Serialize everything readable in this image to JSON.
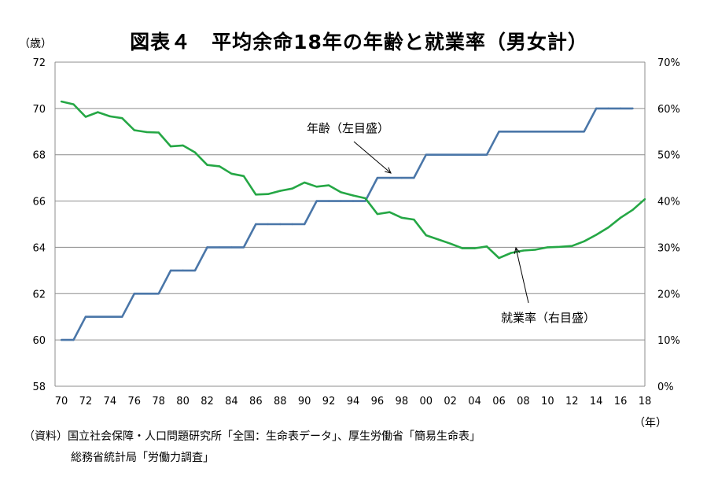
{
  "chart_data": {
    "type": "line",
    "title": "図表４　平均余命18年の年齢と就業率（男女計）",
    "left_axis_unit": "（歳）",
    "x_axis_unit": "（年）",
    "x_ticks": [
      "70",
      "72",
      "74",
      "76",
      "78",
      "80",
      "82",
      "84",
      "86",
      "88",
      "90",
      "92",
      "94",
      "96",
      "98",
      "00",
      "02",
      "04",
      "06",
      "08",
      "10",
      "12",
      "14",
      "16",
      "18"
    ],
    "left_axis": {
      "ylim": [
        58,
        72
      ],
      "ticks": [
        "58",
        "60",
        "62",
        "64",
        "66",
        "68",
        "70",
        "72"
      ]
    },
    "right_axis": {
      "ylim": [
        0,
        70
      ],
      "ticks": [
        "0%",
        "10%",
        "20%",
        "30%",
        "40%",
        "50%",
        "60%",
        "70%"
      ]
    },
    "grid": true,
    "x": [
      1970,
      1971,
      1972,
      1973,
      1974,
      1975,
      1976,
      1977,
      1978,
      1979,
      1980,
      1981,
      1982,
      1983,
      1984,
      1985,
      1986,
      1987,
      1988,
      1989,
      1990,
      1991,
      1992,
      1993,
      1994,
      1995,
      1996,
      1997,
      1998,
      1999,
      2000,
      2001,
      2002,
      2003,
      2004,
      2005,
      2006,
      2007,
      2008,
      2009,
      2010,
      2011,
      2012,
      2013,
      2014,
      2015,
      2016,
      2017,
      2018
    ],
    "series": [
      {
        "name": "年齢（左目盛）",
        "axis": "left",
        "color": "#4A76A8",
        "values": [
          60,
          60,
          61,
          61,
          61,
          61,
          62,
          62,
          62,
          63,
          63,
          63,
          64,
          64,
          64,
          64,
          65,
          65,
          65,
          65,
          65,
          66,
          66,
          66,
          66,
          66,
          67,
          67,
          67,
          67,
          68,
          68,
          68,
          68,
          68,
          68,
          69,
          69,
          69,
          69,
          69,
          69,
          69,
          69,
          70,
          70,
          70,
          70,
          null
        ]
      },
      {
        "name": "就業率（右目盛）",
        "axis": "right",
        "color": "#25A745",
        "values": [
          61.5,
          60.9,
          58.2,
          59.2,
          58.3,
          57.9,
          55.3,
          54.9,
          54.8,
          51.8,
          52.0,
          50.5,
          47.8,
          47.5,
          45.9,
          45.4,
          41.4,
          41.5,
          42.2,
          42.7,
          44.0,
          43.1,
          43.4,
          41.9,
          41.2,
          40.6,
          37.2,
          37.6,
          36.4,
          36.0,
          32.6,
          31.7,
          30.8,
          29.8,
          29.8,
          30.2,
          27.7,
          28.8,
          29.3,
          29.5,
          30.0,
          30.1,
          30.3,
          31.3,
          32.7,
          34.3,
          36.4,
          38.1,
          40.4
        ]
      }
    ],
    "annotations": [
      {
        "text": "年齢（左目盛）",
        "series": 0,
        "x": 1997
      },
      {
        "text": "就業率（右目盛）",
        "series": 1,
        "x": 2007
      }
    ]
  },
  "source_line1": "（資料）国立社会保障・人口問題研究所「全国：生命表データ」、厚生労働省「簡易生命表」",
  "source_line2": "総務省統計局「労働力調査」"
}
